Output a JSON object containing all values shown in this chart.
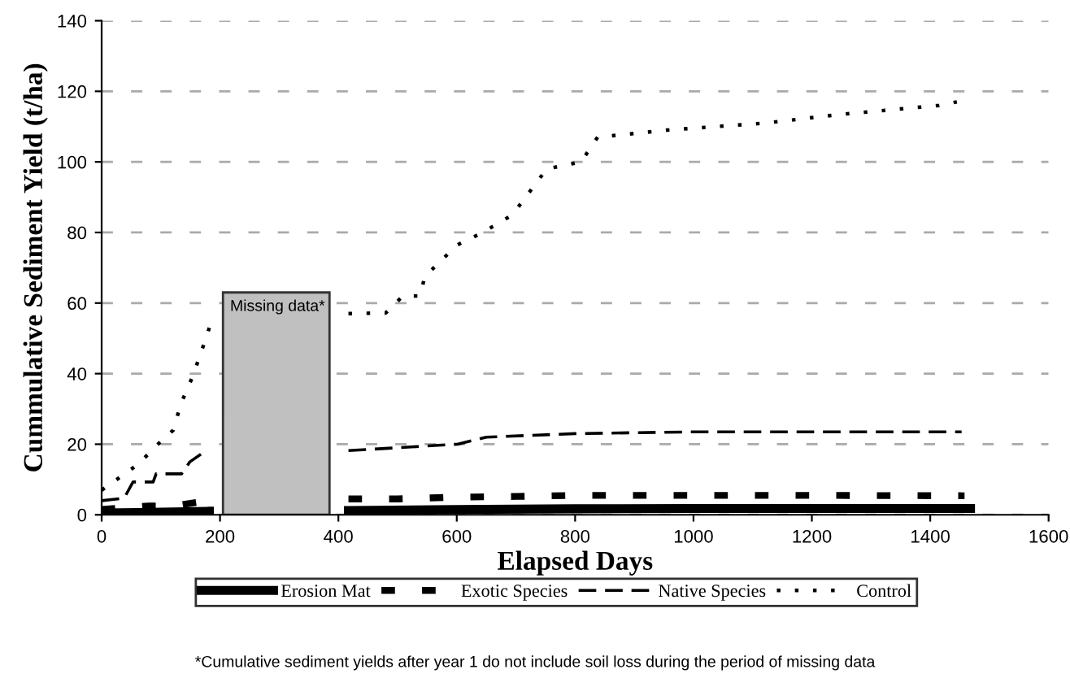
{
  "chart_data": {
    "type": "line",
    "xlabel": "Elapsed Days",
    "ylabel": "Cummulative Sediment Yield (t/ha)",
    "xlim": [
      0,
      1600
    ],
    "xticks": [
      0,
      200,
      400,
      600,
      800,
      1000,
      1200,
      1400,
      1600
    ],
    "ylim": [
      0,
      140
    ],
    "yticks": [
      0,
      20,
      40,
      60,
      80,
      100,
      120,
      140
    ],
    "grid": "y",
    "legend": "bottom",
    "marker": "none",
    "bands": [
      {
        "axis": "x",
        "from": 205,
        "to": 385,
        "color": "#c0c0c0"
      }
    ],
    "annotations": [
      {
        "text": "Missing data*",
        "x": 205,
        "y": 63
      },
      "*Cumulative sediment yields after year 1 do not include soil loss during the period of missing data"
    ],
    "series": [
      {
        "name": "Erosion Mat",
        "color": "#000000",
        "line_style": "solid",
        "x": [
          0,
          60,
          120,
          182,
          300,
          417,
          600,
          800,
          1000,
          1468
        ],
        "values": [
          0.5,
          0.6,
          0.8,
          1.0,
          null,
          1.2,
          1.5,
          1.7,
          1.8,
          1.8
        ]
      },
      {
        "name": "Exotic Species",
        "color": "#000000",
        "line_style": "dashed",
        "x": [
          0,
          40,
          80,
          120,
          160,
          182,
          300,
          417,
          500,
          600,
          700,
          800,
          1000,
          1200,
          1458
        ],
        "values": [
          1.5,
          2,
          2.5,
          2.5,
          3.5,
          3.5,
          null,
          4.5,
          4.5,
          5.0,
          5.2,
          5.5,
          5.5,
          5.5,
          5.4
        ]
      },
      {
        "name": "Native Species",
        "color": "#000000",
        "line_style": "dashed",
        "x": [
          0,
          38,
          53,
          87,
          92,
          135,
          149,
          169,
          300,
          417,
          601,
          650,
          800,
          1000,
          1453
        ],
        "values": [
          4,
          4.7,
          9.3,
          9.3,
          11.6,
          11.6,
          15,
          17.3,
          null,
          18.2,
          20,
          22,
          23,
          23.5,
          23.5
        ]
      },
      {
        "name": "Control",
        "color": "#000000",
        "line_style": "dotted",
        "x": [
          0,
          9,
          63,
          92,
          121,
          134,
          152,
          167,
          182,
          300,
          417,
          480,
          509,
          538,
          546,
          601,
          644,
          694,
          752,
          810,
          838,
          955,
          1121,
          1251,
          1415,
          1445
        ],
        "values": [
          7,
          8,
          14.5,
          19.5,
          24,
          31.5,
          38.5,
          45.5,
          53,
          null,
          57,
          57.2,
          62,
          62,
          67.5,
          76.5,
          80,
          85,
          98,
          100,
          107,
          109,
          111,
          113.5,
          116,
          117
        ]
      }
    ]
  }
}
